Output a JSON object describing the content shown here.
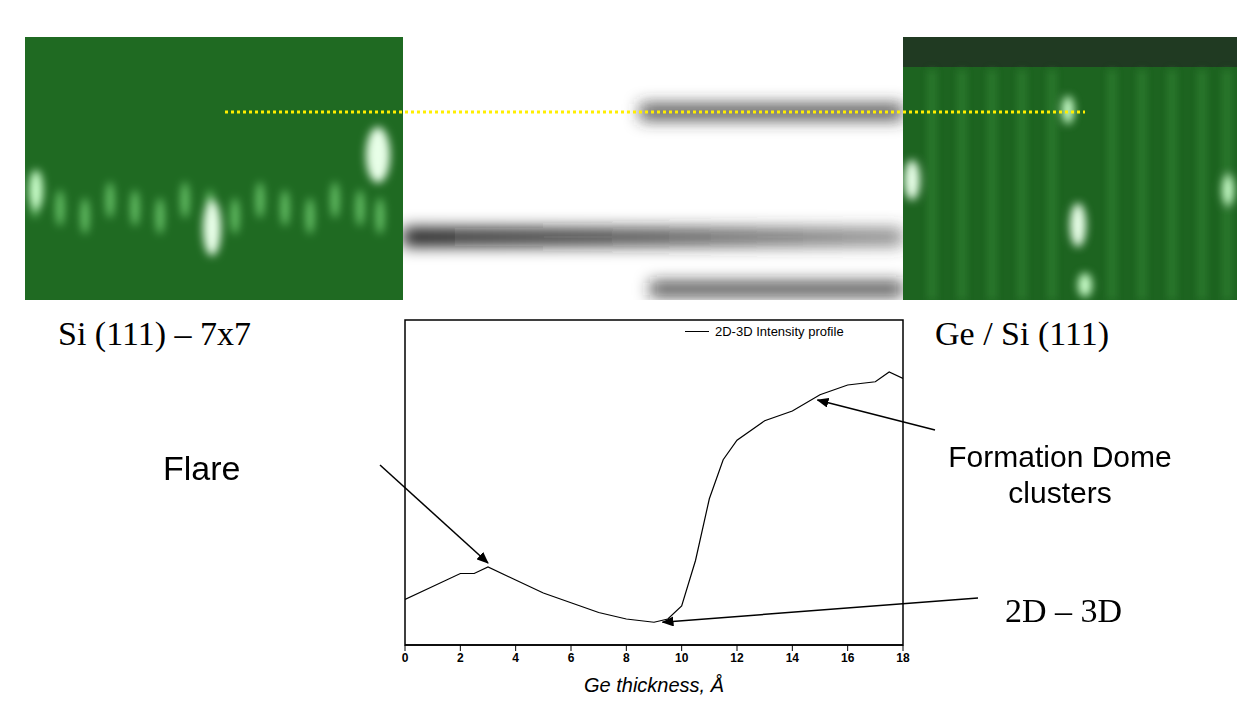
{
  "chart_data": {
    "type": "line",
    "x": [
      0,
      1,
      2,
      2.5,
      3,
      4,
      5,
      6,
      7,
      8,
      9,
      9.5,
      10,
      10.5,
      11,
      11.5,
      12,
      13,
      14,
      15,
      16,
      17,
      17.5,
      18
    ],
    "series": [
      {
        "name": "2D-3D Intensity profile",
        "color": "#000000",
        "values": [
          0.14,
          0.18,
          0.22,
          0.22,
          0.24,
          0.2,
          0.16,
          0.13,
          0.1,
          0.08,
          0.07,
          0.08,
          0.12,
          0.26,
          0.45,
          0.57,
          0.63,
          0.69,
          0.72,
          0.77,
          0.8,
          0.81,
          0.84,
          0.82
        ]
      }
    ],
    "xlim": [
      0,
      18
    ],
    "xticks": [
      0,
      2,
      4,
      6,
      8,
      10,
      12,
      14,
      16,
      18
    ],
    "ylim": [
      0,
      1
    ],
    "tick_labels": "x",
    "xlabel": "Ge thickness, Å",
    "legend": "upper right",
    "annotations": [
      {
        "text": "Flare",
        "x": 3,
        "y": 0.24
      },
      {
        "text": "Formation Dome clusters",
        "x": 14.8,
        "y": 0.76
      },
      {
        "text": "2D – 3D",
        "x": 9.2,
        "y": 0.07
      }
    ]
  },
  "image_captions": [
    "Si (111) – 7x7",
    "Ge / Si (111)"
  ]
}
